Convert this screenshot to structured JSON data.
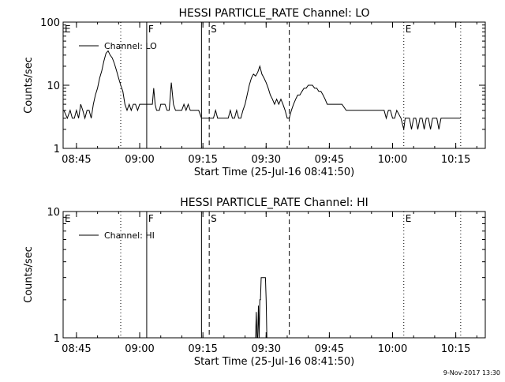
{
  "footer_date": "9-Nov-2017 13:30",
  "chart_data": [
    {
      "type": "line",
      "title": "HESSI PARTICLE_RATE Channel: LO",
      "xlabel": "Start Time (25-Jul-16 08:41:50)",
      "ylabel": "Counts/sec",
      "yscale": "log",
      "ylim": [
        1,
        100
      ],
      "xlim": [
        "08:41:50",
        "10:22:00"
      ],
      "y_ticks": [
        "1",
        "10",
        "100"
      ],
      "x_ticks": [
        "08:45",
        "09:00",
        "09:15",
        "09:30",
        "09:45",
        "10:00",
        "10:15"
      ],
      "legend": "Channel: LO",
      "legend_position": "top-left",
      "markers": [
        {
          "label": "E",
          "time": "08:41:50",
          "style": "dotted"
        },
        {
          "label": "",
          "time": "08:55:30",
          "style": "dotted"
        },
        {
          "label": "F",
          "time": "09:01:40",
          "style": "solid"
        },
        {
          "label": "",
          "time": "09:14:40",
          "style": "solid"
        },
        {
          "label": "S",
          "time": "09:16:30",
          "style": "dashed"
        },
        {
          "label": "",
          "time": "09:35:30",
          "style": "dashed"
        },
        {
          "label": "E",
          "time": "10:02:40",
          "style": "dotted"
        },
        {
          "label": "",
          "time": "10:16:10",
          "style": "dotted"
        }
      ],
      "series": [
        {
          "name": "Channel: LO",
          "points": [
            [
              "08:42:00",
              4
            ],
            [
              "08:42:50",
              3
            ],
            [
              "08:43:30",
              4
            ],
            [
              "08:44:00",
              3
            ],
            [
              "08:44:30",
              3
            ],
            [
              "08:45:00",
              4
            ],
            [
              "08:45:30",
              3
            ],
            [
              "08:46:00",
              5
            ],
            [
              "08:46:30",
              4
            ],
            [
              "08:47:00",
              3
            ],
            [
              "08:47:30",
              4
            ],
            [
              "08:48:00",
              4
            ],
            [
              "08:48:30",
              3
            ],
            [
              "08:49:00",
              5
            ],
            [
              "08:49:30",
              7
            ],
            [
              "08:50:00",
              9
            ],
            [
              "08:50:30",
              13
            ],
            [
              "08:51:00",
              17
            ],
            [
              "08:51:30",
              24
            ],
            [
              "08:52:00",
              32
            ],
            [
              "08:52:30",
              35
            ],
            [
              "08:53:00",
              30
            ],
            [
              "08:53:30",
              27
            ],
            [
              "08:54:00",
              22
            ],
            [
              "08:54:30",
              17
            ],
            [
              "08:55:00",
              13
            ],
            [
              "08:55:30",
              10
            ],
            [
              "08:56:00",
              8
            ],
            [
              "08:56:30",
              5
            ],
            [
              "08:57:00",
              4
            ],
            [
              "08:57:30",
              5
            ],
            [
              "08:58:00",
              4
            ],
            [
              "08:58:30",
              5
            ],
            [
              "08:59:00",
              5
            ],
            [
              "08:59:30",
              4
            ],
            [
              "09:00:00",
              5
            ],
            [
              "09:00:30",
              5
            ],
            [
              "09:01:40",
              5
            ],
            [
              "09:02:30",
              5
            ],
            [
              "09:03:00",
              5
            ],
            [
              "09:03:20",
              9
            ],
            [
              "09:03:40",
              5
            ],
            [
              "09:04:00",
              4
            ],
            [
              "09:04:40",
              4
            ],
            [
              "09:05:00",
              5
            ],
            [
              "09:06:00",
              5
            ],
            [
              "09:06:30",
              4
            ],
            [
              "09:07:00",
              4
            ],
            [
              "09:07:30",
              11
            ],
            [
              "09:08:00",
              5
            ],
            [
              "09:08:30",
              4
            ],
            [
              "09:09:00",
              4
            ],
            [
              "09:10:00",
              4
            ],
            [
              "09:10:30",
              5
            ],
            [
              "09:11:00",
              4
            ],
            [
              "09:11:30",
              5
            ],
            [
              "09:12:00",
              4
            ],
            [
              "09:12:30",
              4
            ],
            [
              "09:13:00",
              4
            ],
            [
              "09:14:00",
              4
            ],
            [
              "09:14:40",
              3
            ],
            [
              "09:15:30",
              3
            ],
            [
              "09:16:30",
              3
            ],
            [
              "09:17:00",
              3
            ],
            [
              "09:17:30",
              3
            ],
            [
              "09:18:00",
              4
            ],
            [
              "09:18:30",
              3
            ],
            [
              "09:19:00",
              3
            ],
            [
              "09:20:00",
              3
            ],
            [
              "09:21:00",
              3
            ],
            [
              "09:21:30",
              4
            ],
            [
              "09:22:00",
              3
            ],
            [
              "09:22:30",
              3
            ],
            [
              "09:23:00",
              4
            ],
            [
              "09:23:30",
              3
            ],
            [
              "09:24:00",
              3
            ],
            [
              "09:24:30",
              4
            ],
            [
              "09:25:00",
              5
            ],
            [
              "09:25:30",
              7
            ],
            [
              "09:26:00",
              10
            ],
            [
              "09:26:30",
              13
            ],
            [
              "09:27:00",
              15
            ],
            [
              "09:27:30",
              14
            ],
            [
              "09:28:00",
              16
            ],
            [
              "09:28:30",
              20
            ],
            [
              "09:29:00",
              15
            ],
            [
              "09:29:30",
              13
            ],
            [
              "09:30:00",
              11
            ],
            [
              "09:30:30",
              9
            ],
            [
              "09:31:00",
              7
            ],
            [
              "09:31:30",
              6
            ],
            [
              "09:32:00",
              5
            ],
            [
              "09:32:30",
              6
            ],
            [
              "09:33:00",
              5
            ],
            [
              "09:33:30",
              6
            ],
            [
              "09:34:00",
              5
            ],
            [
              "09:34:30",
              4
            ],
            [
              "09:35:00",
              3
            ],
            [
              "09:35:30",
              3
            ],
            [
              "09:36:00",
              4
            ],
            [
              "09:36:30",
              5
            ],
            [
              "09:37:00",
              6
            ],
            [
              "09:37:30",
              7
            ],
            [
              "09:38:00",
              7
            ],
            [
              "09:38:30",
              8
            ],
            [
              "09:39:00",
              9
            ],
            [
              "09:39:30",
              9
            ],
            [
              "09:40:00",
              10
            ],
            [
              "09:40:30",
              10
            ],
            [
              "09:41:00",
              10
            ],
            [
              "09:41:30",
              9
            ],
            [
              "09:42:00",
              9
            ],
            [
              "09:42:30",
              8
            ],
            [
              "09:43:00",
              8
            ],
            [
              "09:43:30",
              7
            ],
            [
              "09:44:00",
              6
            ],
            [
              "09:44:30",
              5
            ],
            [
              "09:45:00",
              5
            ],
            [
              "09:46:00",
              5
            ],
            [
              "09:47:00",
              5
            ],
            [
              "09:48:00",
              5
            ],
            [
              "09:49:00",
              4
            ],
            [
              "09:50:00",
              4
            ],
            [
              "09:51:00",
              4
            ],
            [
              "09:52:00",
              4
            ],
            [
              "09:53:00",
              4
            ],
            [
              "09:54:00",
              4
            ],
            [
              "09:55:00",
              4
            ],
            [
              "09:56:00",
              4
            ],
            [
              "09:57:00",
              4
            ],
            [
              "09:58:00",
              4
            ],
            [
              "09:58:30",
              3
            ],
            [
              "09:59:00",
              4
            ],
            [
              "09:59:30",
              4
            ],
            [
              "10:00:00",
              3
            ],
            [
              "10:00:30",
              3
            ],
            [
              "10:01:00",
              4
            ],
            [
              "10:02:00",
              3
            ],
            [
              "10:02:40",
              2
            ],
            [
              "10:03:00",
              3
            ],
            [
              "10:03:30",
              3
            ],
            [
              "10:04:00",
              3
            ],
            [
              "10:04:30",
              2
            ],
            [
              "10:05:00",
              3
            ],
            [
              "10:05:30",
              3
            ],
            [
              "10:06:00",
              2
            ],
            [
              "10:06:30",
              3
            ],
            [
              "10:07:00",
              3
            ],
            [
              "10:07:30",
              2
            ],
            [
              "10:08:00",
              3
            ],
            [
              "10:08:30",
              3
            ],
            [
              "10:09:00",
              2
            ],
            [
              "10:09:30",
              3
            ],
            [
              "10:10:00",
              3
            ],
            [
              "10:10:30",
              3
            ],
            [
              "10:11:00",
              2
            ],
            [
              "10:11:30",
              3
            ],
            [
              "10:12:00",
              3
            ],
            [
              "10:13:00",
              3
            ],
            [
              "10:14:00",
              3
            ],
            [
              "10:15:00",
              3
            ],
            [
              "10:16:10",
              3
            ]
          ]
        }
      ]
    },
    {
      "type": "line",
      "title": "HESSI PARTICLE_RATE Channel: HI",
      "xlabel": "Start Time (25-Jul-16 08:41:50)",
      "ylabel": "Counts/sec",
      "yscale": "log",
      "ylim": [
        1,
        10
      ],
      "xlim": [
        "08:41:50",
        "10:22:00"
      ],
      "y_ticks": [
        "1",
        "10"
      ],
      "x_ticks": [
        "08:45",
        "09:00",
        "09:15",
        "09:30",
        "09:45",
        "10:00",
        "10:15"
      ],
      "legend": "Channel: HI",
      "legend_position": "top-left",
      "markers": [
        {
          "label": "E",
          "time": "08:41:50",
          "style": "dotted"
        },
        {
          "label": "",
          "time": "08:55:30",
          "style": "dotted"
        },
        {
          "label": "F",
          "time": "09:01:40",
          "style": "solid"
        },
        {
          "label": "",
          "time": "09:14:40",
          "style": "solid"
        },
        {
          "label": "S",
          "time": "09:16:30",
          "style": "dashed"
        },
        {
          "label": "",
          "time": "09:35:30",
          "style": "dashed"
        },
        {
          "label": "E",
          "time": "10:02:40",
          "style": "dotted"
        },
        {
          "label": "",
          "time": "10:16:10",
          "style": "dotted"
        }
      ],
      "series": [
        {
          "name": "Channel: HI",
          "points": [
            [
              "09:27:30",
              1
            ],
            [
              "09:27:40",
              1.6
            ],
            [
              "09:27:50",
              1
            ],
            [
              "09:28:00",
              1
            ],
            [
              "09:28:10",
              1.8
            ],
            [
              "09:28:20",
              1
            ],
            [
              "09:28:30",
              2
            ],
            [
              "09:28:40",
              2
            ],
            [
              "09:28:50",
              3
            ],
            [
              "09:29:10",
              3
            ],
            [
              "09:29:30",
              3
            ],
            [
              "09:29:50",
              3
            ],
            [
              "09:30:00",
              2
            ],
            [
              "09:30:10",
              1
            ]
          ]
        }
      ]
    }
  ]
}
